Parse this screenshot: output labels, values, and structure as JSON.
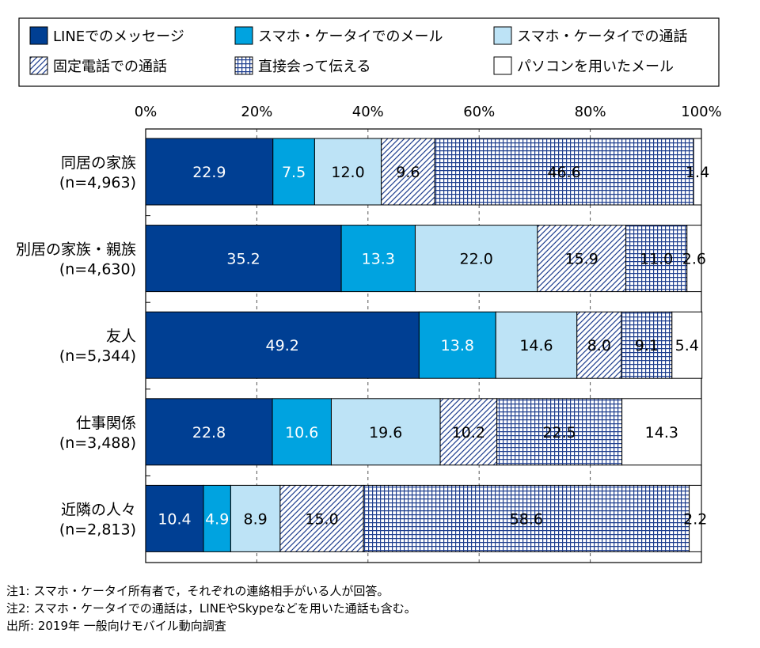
{
  "chart_data": {
    "type": "bar",
    "orientation": "horizontal",
    "stacked": true,
    "categories": [
      "同居の家族\n(n=4,963)",
      "別居の家族・親族\n(n=4,630)",
      "友人\n(n=5,344)",
      "仕事関係\n(n=3,488)",
      "近隣の人々\n(n=2,813)"
    ],
    "xlim": [
      0,
      100
    ],
    "xticks": [
      "0%",
      "20%",
      "40%",
      "60%",
      "80%",
      "100%"
    ],
    "grid": true,
    "legend_position": "top",
    "series": [
      {
        "name": "LINEでのメッセージ",
        "values": [
          22.9,
          35.2,
          49.2,
          22.8,
          10.4
        ],
        "color": "#003f93",
        "pattern": "solid",
        "label_color": "#ffffff"
      },
      {
        "name": "スマホ・ケータイでのメール",
        "values": [
          7.5,
          13.3,
          13.8,
          10.6,
          4.9
        ],
        "color": "#00a3e0",
        "pattern": "solid",
        "label_color": "#ffffff"
      },
      {
        "name": "スマホ・ケータイでの通話",
        "values": [
          12.0,
          22.0,
          14.6,
          19.6,
          8.9
        ],
        "color": "#bde3f6",
        "pattern": "solid",
        "label_color": "#000000"
      },
      {
        "name": "固定電話での通話",
        "values": [
          9.6,
          15.9,
          8.0,
          10.2,
          15.0
        ],
        "color": "#1f3f8f",
        "pattern": "diagonal",
        "label_color": "#000000"
      },
      {
        "name": "直接会って伝える",
        "values": [
          46.6,
          11.0,
          9.1,
          22.5,
          58.6
        ],
        "color": "#1f3f8f",
        "pattern": "grid",
        "label_color": "#000000"
      },
      {
        "name": "パソコンを用いたメール",
        "values": [
          1.4,
          2.6,
          5.4,
          14.3,
          2.2
        ],
        "color": "#ffffff",
        "pattern": "solid",
        "label_color": "#000000"
      }
    ]
  },
  "notes": [
    "注1: スマホ・ケータイ所有者で，それぞれの連絡相手がいる人が回答。",
    "注2: スマホ・ケータイでの通話は，LINEやSkypeなどを用いた通話も含む。",
    "出所: 2019年 一般向けモバイル動向調査"
  ]
}
